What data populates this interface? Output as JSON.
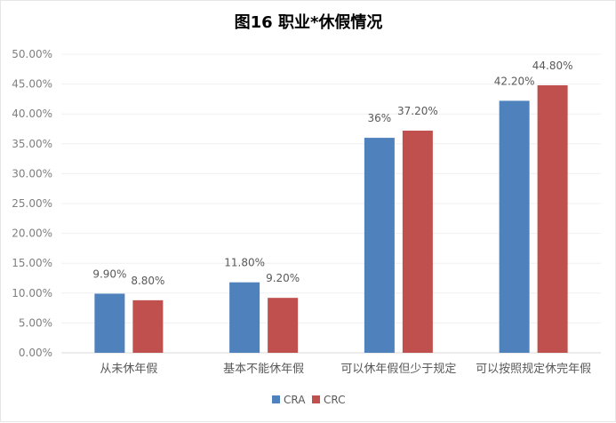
{
  "chart_data": {
    "type": "bar",
    "title": "图16 职业*休假情况",
    "categories": [
      "从未休年假",
      "基本不能休年假",
      "可以休年假但少于规定",
      "可以按照规定休完年假"
    ],
    "series": [
      {
        "name": "CRA",
        "values": [
          9.9,
          11.8,
          36,
          42.2
        ],
        "labels": [
          "9.90%",
          "11.80%",
          "36%",
          "42.20%"
        ],
        "color": "#4F81BD"
      },
      {
        "name": "CRC",
        "values": [
          8.8,
          9.2,
          37.2,
          44.8
        ],
        "labels": [
          "8.80%",
          "9.20%",
          "37.20%",
          "44.80%"
        ],
        "color": "#C0504D"
      }
    ],
    "ylim": [
      0,
      50
    ],
    "yticks": [
      "0.00%",
      "5.00%",
      "10.00%",
      "15.00%",
      "20.00%",
      "25.00%",
      "30.00%",
      "35.00%",
      "40.00%",
      "45.00%",
      "50.00%"
    ],
    "grid": true,
    "legend": "bottom",
    "xlabel": "",
    "ylabel": ""
  }
}
